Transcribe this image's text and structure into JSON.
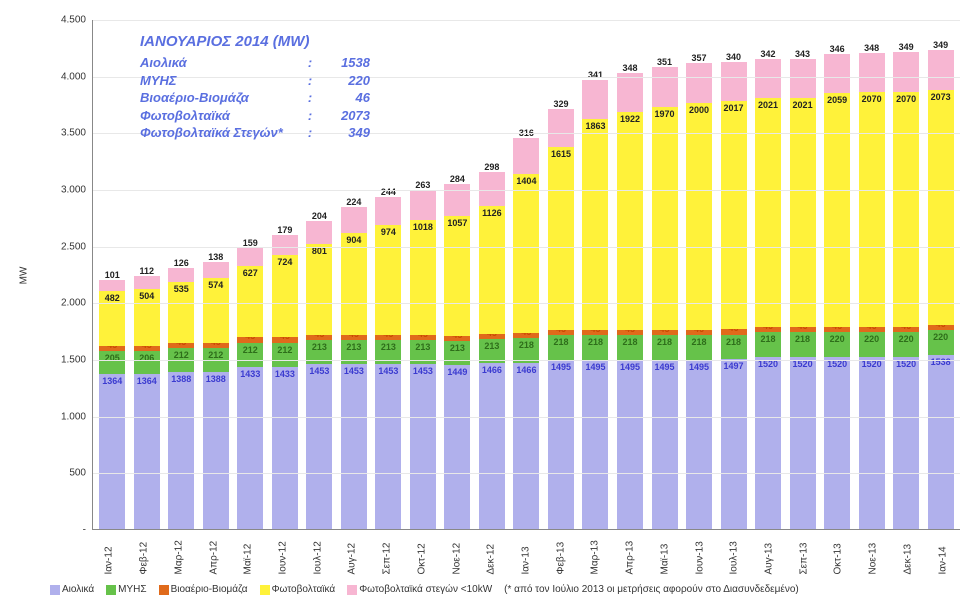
{
  "chart": {
    "type": "stacked-bar",
    "y_axis_label": "MW",
    "ylim": [
      0,
      4500
    ],
    "ytick_step": 500,
    "yticks": [
      "-",
      "500",
      "1.000",
      "1.500",
      "2.000",
      "2.500",
      "3.000",
      "3.500",
      "4.000",
      "4.500"
    ],
    "categories": [
      "Ιαν-12",
      "Φεβ-12",
      "Μαρ-12",
      "Απρ-12",
      "Μαϊ-12",
      "Ιουν-12",
      "Ιουλ-12",
      "Αυγ-12",
      "Σεπ-12",
      "Οκτ-12",
      "Νοε-12",
      "Δεκ-12",
      "Ιαν-13",
      "Φεβ-13",
      "Μαρ-13",
      "Απρ-13",
      "Μαϊ-13",
      "Ιουν-13",
      "Ιουλ-13",
      "Αυγ-13",
      "Σεπ-13",
      "Οκτ-13",
      "Νοε-13",
      "Δεκ-13",
      "Ιαν-14"
    ],
    "series": [
      {
        "name": "Αιολικά",
        "color": "#b0b0ec",
        "label_color": "#3b3bd0",
        "values": [
          1364,
          1364,
          1388,
          1388,
          1433,
          1433,
          1453,
          1453,
          1453,
          1453,
          1449,
          1466,
          1466,
          1495,
          1495,
          1495,
          1495,
          1495,
          1497,
          1520,
          1520,
          1520,
          1520,
          1520,
          1538
        ]
      },
      {
        "name": "ΜΥΗΣ",
        "color": "#66c24a",
        "label_color": "#2e6e1a",
        "values": [
          205,
          206,
          212,
          212,
          212,
          212,
          213,
          213,
          213,
          213,
          213,
          213,
          218,
          218,
          218,
          218,
          218,
          218,
          218,
          218,
          218,
          220,
          220,
          220,
          220
        ]
      },
      {
        "name": "Βιοαέριο-Βιομάζα",
        "color": "#e06a1b",
        "label_color": "#c94a00",
        "values": [
          45,
          45,
          45,
          45,
          45,
          45,
          45,
          45,
          45,
          45,
          45,
          45,
          45,
          45,
          45,
          45,
          45,
          46,
          46,
          46,
          46,
          46,
          46,
          46,
          46
        ]
      },
      {
        "name": "Φωτοβολταϊκά",
        "color": "#fff23a",
        "label_color": "#222222",
        "values": [
          482,
          504,
          535,
          574,
          627,
          724,
          801,
          904,
          974,
          1018,
          1057,
          1126,
          1404,
          1615,
          1863,
          1922,
          1970,
          2000,
          2017,
          2021,
          2021,
          2059,
          2070,
          2070,
          2073
        ]
      },
      {
        "name": "Φωτοβολταϊκά στεγών <10kW",
        "color": "#f7b6d2",
        "label_color": "#222222",
        "values": [
          101,
          112,
          126,
          138,
          159,
          179,
          204,
          224,
          244,
          263,
          284,
          298,
          316,
          329,
          341,
          348,
          351,
          357,
          340,
          342,
          343,
          346,
          348,
          349,
          349
        ]
      }
    ],
    "background_color": "#ffffff",
    "grid_color": "#e8e8e8"
  },
  "summary": {
    "title": "ΙΑΝΟΥΑΡΙΟΣ 2014 (MW)",
    "rows": [
      {
        "k": "Αιολικά",
        "v": "1538"
      },
      {
        "k": "ΜΥΗΣ",
        "v": "220"
      },
      {
        "k": "Βιοαέριο-Βιομάζα",
        "v": "46"
      },
      {
        "k": "Φωτοβολταϊκά",
        "v": "2073"
      },
      {
        "k": "Φωτοβολταϊκά Στεγών*",
        "v": "349"
      }
    ]
  },
  "legend": {
    "note": "(* από τον Ιούλιο 2013 οι μετρήσεις αφορούν στο Διασυνδεδεμένο)"
  }
}
